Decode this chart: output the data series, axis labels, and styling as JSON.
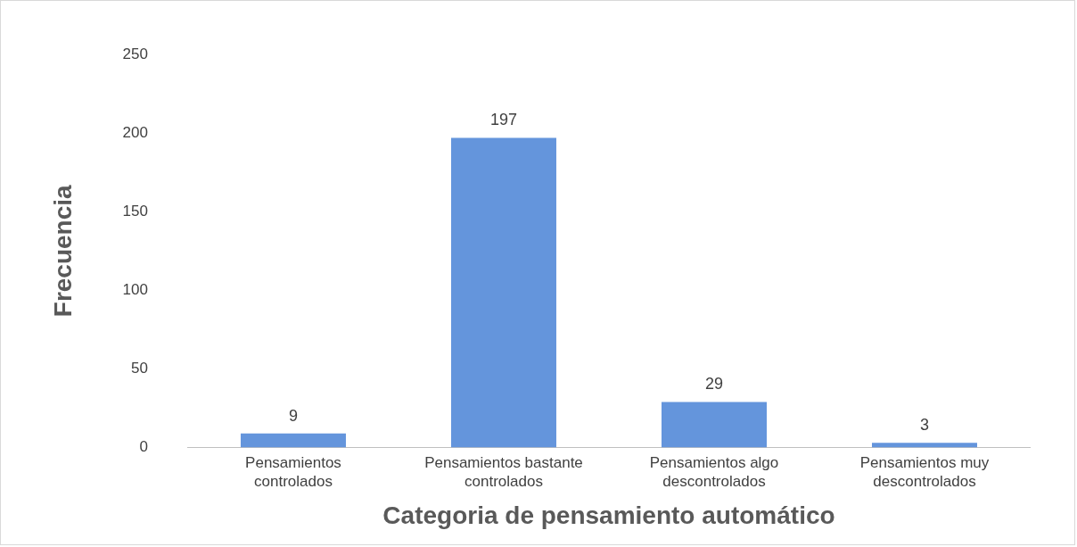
{
  "chart_data": {
    "type": "bar",
    "xlabel": "Categoria de pensamiento automático",
    "ylabel": "Frecuencia",
    "categories": [
      "Pensamientos controlados",
      "Pensamientos bastante controlados",
      "Pensamientos algo descontrolados",
      "Pensamientos muy descontrolados"
    ],
    "values": [
      9,
      197,
      29,
      3
    ],
    "color": "#6495dc",
    "ylim": [
      0,
      250
    ],
    "yticks": [
      0,
      50,
      100,
      150,
      200,
      250
    ],
    "data_labels": true
  }
}
